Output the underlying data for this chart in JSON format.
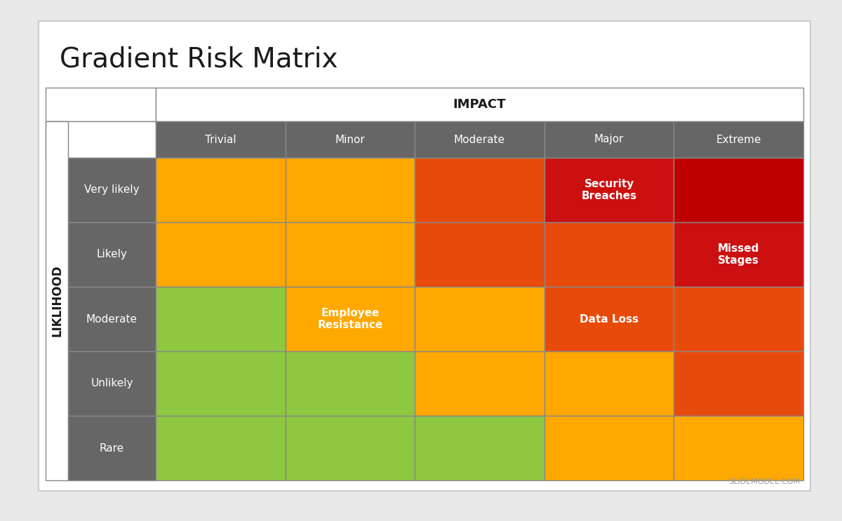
{
  "title": "Gradient Risk Matrix",
  "impact_label": "IMPACT",
  "likelihood_label": "LIKLIHOOD",
  "impact_cols": [
    "Trivial",
    "Minor",
    "Moderate",
    "Major",
    "Extreme"
  ],
  "likelihood_rows": [
    "Very likely",
    "Likely",
    "Moderate",
    "Unlikely",
    "Rare"
  ],
  "cell_colors": [
    [
      "#FFA800",
      "#FFA800",
      "#E84A0C",
      "#CC1010",
      "#BE0000"
    ],
    [
      "#FFA800",
      "#FFA800",
      "#E84A0C",
      "#E84A0C",
      "#CC1010"
    ],
    [
      "#8DC840",
      "#FFA800",
      "#FFA800",
      "#E84A0C",
      "#E84A0C"
    ],
    [
      "#8DC840",
      "#8DC840",
      "#FFA800",
      "#FFA800",
      "#E84A0C"
    ],
    [
      "#8DC840",
      "#8DC840",
      "#8DC840",
      "#FFA800",
      "#FFA800"
    ]
  ],
  "cell_labels": [
    [
      "",
      "",
      "",
      "Security\nBreaches",
      ""
    ],
    [
      "",
      "",
      "",
      "",
      "Missed\nStages"
    ],
    [
      "",
      "Employee\nResistance",
      "",
      "Data Loss",
      ""
    ],
    [
      "",
      "",
      "",
      "",
      ""
    ],
    [
      "",
      "",
      "",
      "",
      ""
    ]
  ],
  "header_bg": "#666666",
  "header_text": "#ffffff",
  "row_label_bg": "#666666",
  "row_label_text": "#ffffff",
  "cell_label_color": "#ffffff",
  "title_fontsize": 28,
  "header_fontsize": 11,
  "row_label_fontsize": 11,
  "cell_label_fontsize": 11,
  "impact_header_fontsize": 13,
  "bg_color": "#e8e8e8",
  "card_bg": "#ffffff",
  "border_color": "#aaaaaa",
  "table_border_color": "#888888",
  "watermark": "SLIDEMODEL.COM"
}
